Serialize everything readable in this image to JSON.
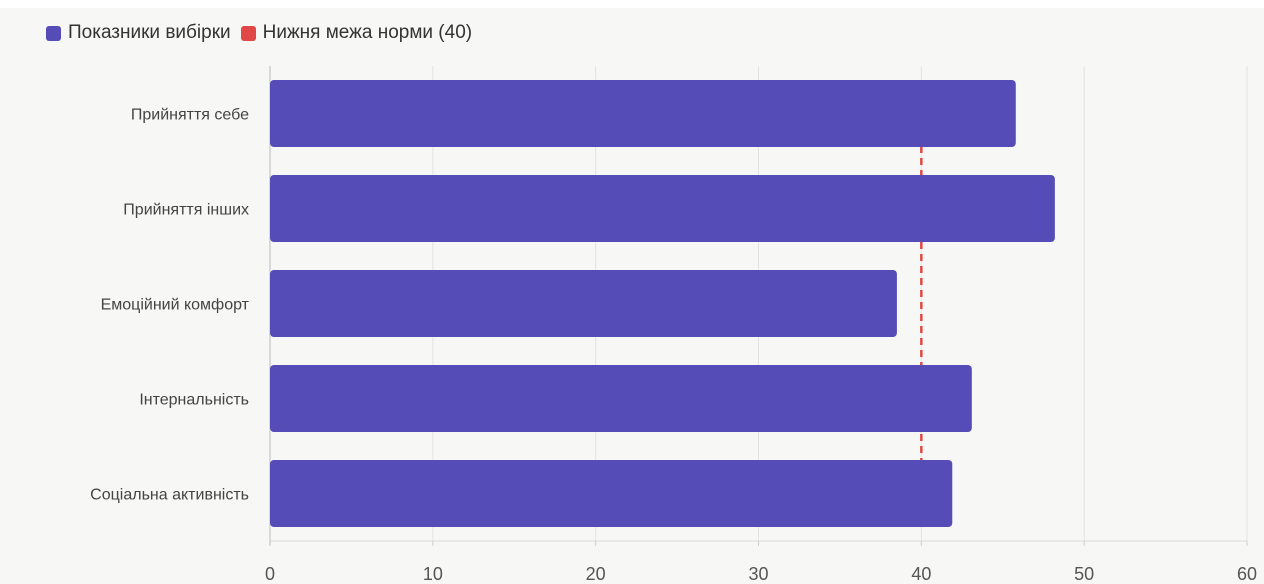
{
  "legend": {
    "items": [
      {
        "label": "Показники вибірки",
        "color": "#554cb7"
      },
      {
        "label": "Нижня межа норми (40)",
        "color": "#e04848"
      }
    ]
  },
  "chart_data": {
    "type": "bar",
    "orientation": "horizontal",
    "categories": [
      "Прийняття себе",
      "Прийняття інших",
      "Емоційний комфорт",
      "Інтернальність",
      "Соціальна активність"
    ],
    "series": [
      {
        "name": "Показники вибірки",
        "values": [
          45.8,
          48.2,
          38.5,
          43.1,
          41.9
        ],
        "color": "#554cb7"
      }
    ],
    "reference_line": {
      "name": "Нижня межа норми (40)",
      "value": 40,
      "color": "#e04848",
      "style": "dashed"
    },
    "xlim": [
      0,
      60
    ],
    "xticks": [
      0,
      10,
      20,
      30,
      40,
      50,
      60
    ],
    "grid": true,
    "legend_position": "top-left"
  }
}
